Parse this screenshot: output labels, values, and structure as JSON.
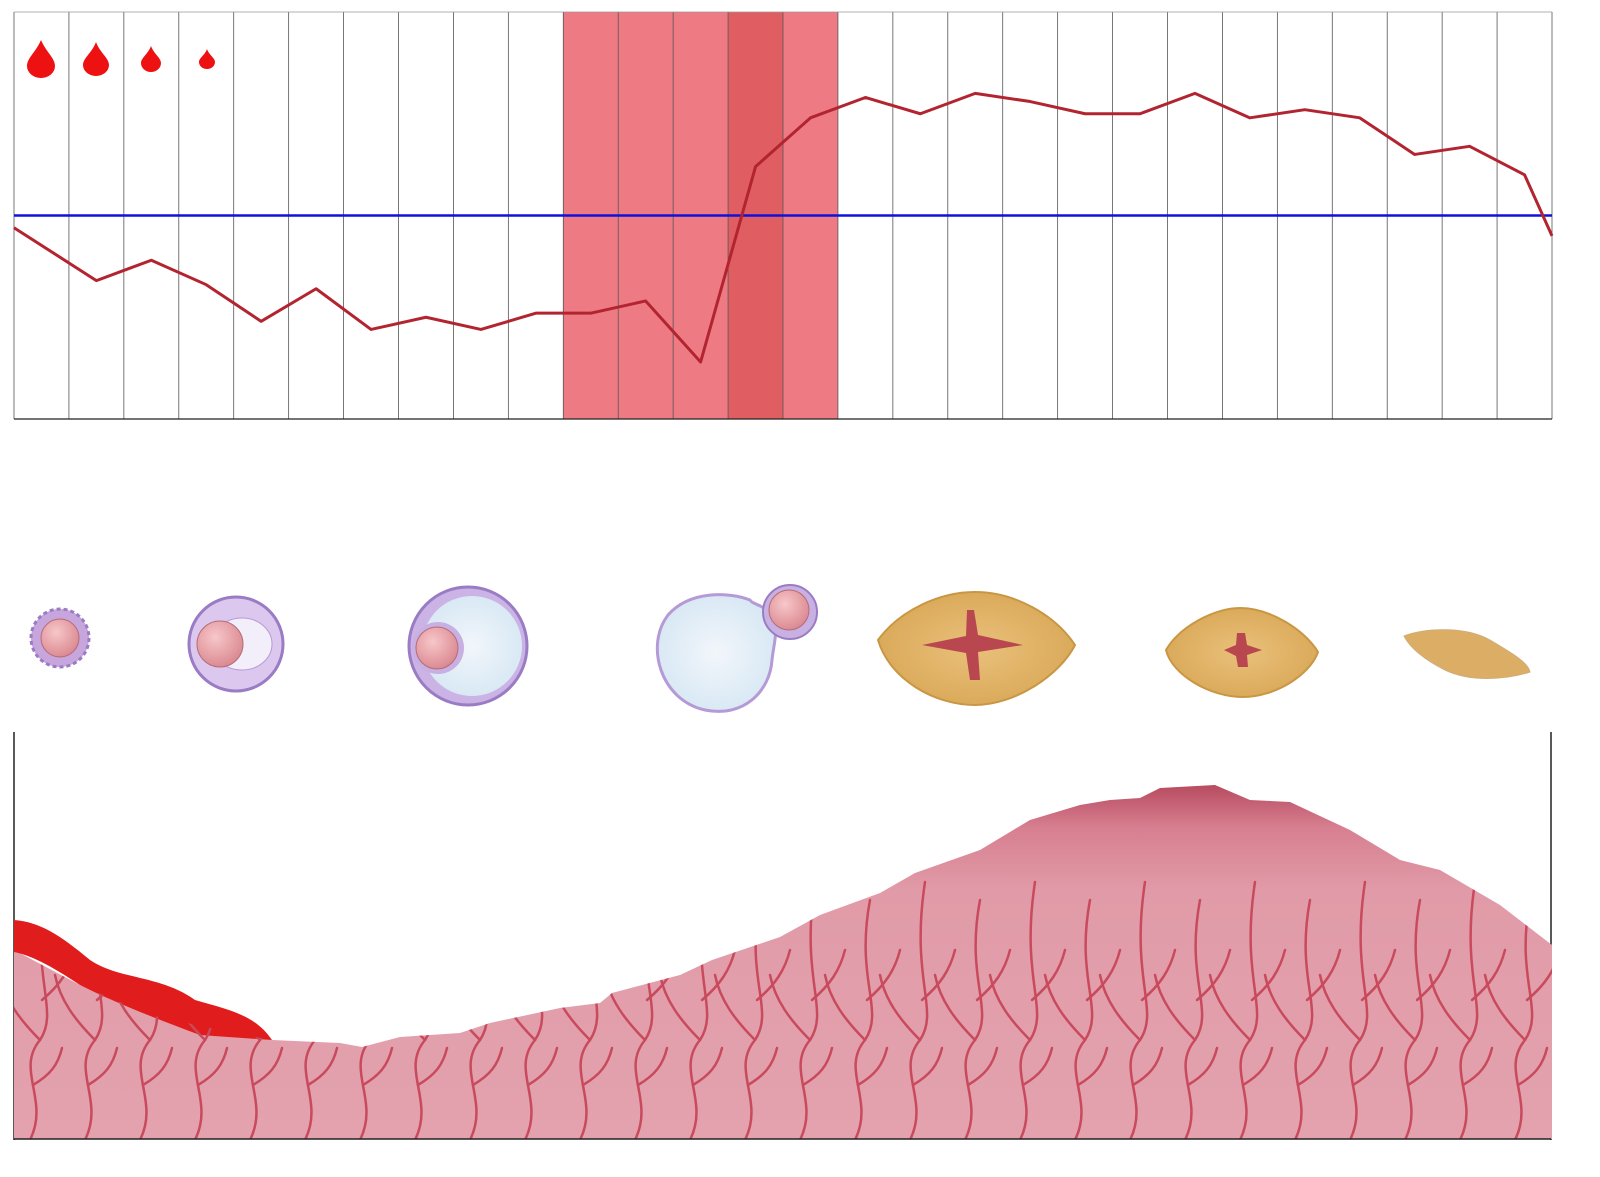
{
  "chart_data": {
    "type": "line",
    "x": [
      0,
      1.5,
      2.5,
      3.5,
      4.5,
      5.5,
      6.5,
      7.5,
      8.5,
      9.5,
      10.5,
      11.5,
      12.5,
      13.5,
      14.5,
      15.5,
      16.5,
      17.5,
      18.5,
      19.5,
      20.5,
      21.5,
      22.5,
      23.5,
      24.5,
      25.5,
      26.5,
      27.5,
      28
    ],
    "series": [
      {
        "color": "#b22530",
        "values": [
          47,
          34,
          39,
          33,
          24,
          32,
          22,
          25,
          22,
          26,
          26,
          29,
          14,
          62,
          74,
          79,
          75,
          80,
          78,
          75,
          75,
          80,
          74,
          76,
          74,
          65,
          67,
          60,
          45
        ]
      }
    ],
    "xlim": [
      0,
      28
    ],
    "ylim": [
      0,
      100
    ],
    "xticks": [
      0,
      1,
      2,
      3,
      4,
      5,
      6,
      7,
      8,
      9,
      10,
      11,
      12,
      13,
      14,
      15,
      16,
      17,
      18,
      19,
      20,
      21,
      22,
      23,
      24,
      25,
      26,
      27,
      28
    ],
    "grid": true,
    "hline": {
      "value": 50,
      "color": "#1010dd"
    },
    "bands": [
      {
        "from": 10,
        "to": 15,
        "color": "#ee7b84"
      },
      {
        "from": 13,
        "to": 14,
        "color": "#e05e61"
      }
    ]
  }
}
